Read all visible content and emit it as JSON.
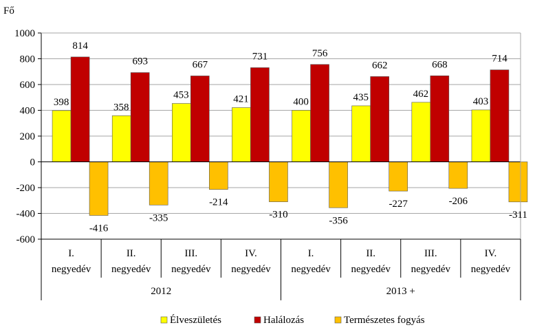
{
  "chart_data": {
    "type": "bar",
    "ylabel": "Fő",
    "ylim": [
      -600,
      1000
    ],
    "yticks": [
      -600,
      -400,
      -200,
      0,
      200,
      400,
      600,
      800,
      1000
    ],
    "grid": true,
    "legend_position": "bottom",
    "categories": [
      {
        "line1": "I.",
        "line2": "negyedév",
        "group": "2012"
      },
      {
        "line1": "II.",
        "line2": "negyedév",
        "group": "2012"
      },
      {
        "line1": "III.",
        "line2": "negyedév",
        "group": "2012"
      },
      {
        "line1": "IV.",
        "line2": "negyedév",
        "group": "2012"
      },
      {
        "line1": "I.",
        "line2": "negyedév",
        "group": "2013 +"
      },
      {
        "line1": "II.",
        "line2": "negyedév",
        "group": "2013 +"
      },
      {
        "line1": "III.",
        "line2": "negyedév",
        "group": "2013 +"
      },
      {
        "line1": "IV.",
        "line2": "negyedév",
        "group": "2013 +"
      }
    ],
    "groups": [
      "2012",
      "2013 +"
    ],
    "series": [
      {
        "name": "Élveszületés",
        "color": "#ffff00",
        "values": [
          398,
          358,
          453,
          421,
          400,
          435,
          462,
          403
        ]
      },
      {
        "name": "Halálozás",
        "color": "#c00000",
        "values": [
          814,
          693,
          667,
          731,
          756,
          662,
          668,
          714
        ]
      },
      {
        "name": "Természetes fogyás",
        "color": "#ffc000",
        "values": [
          -416,
          -335,
          -214,
          -310,
          -356,
          -227,
          -206,
          -311
        ]
      }
    ]
  }
}
